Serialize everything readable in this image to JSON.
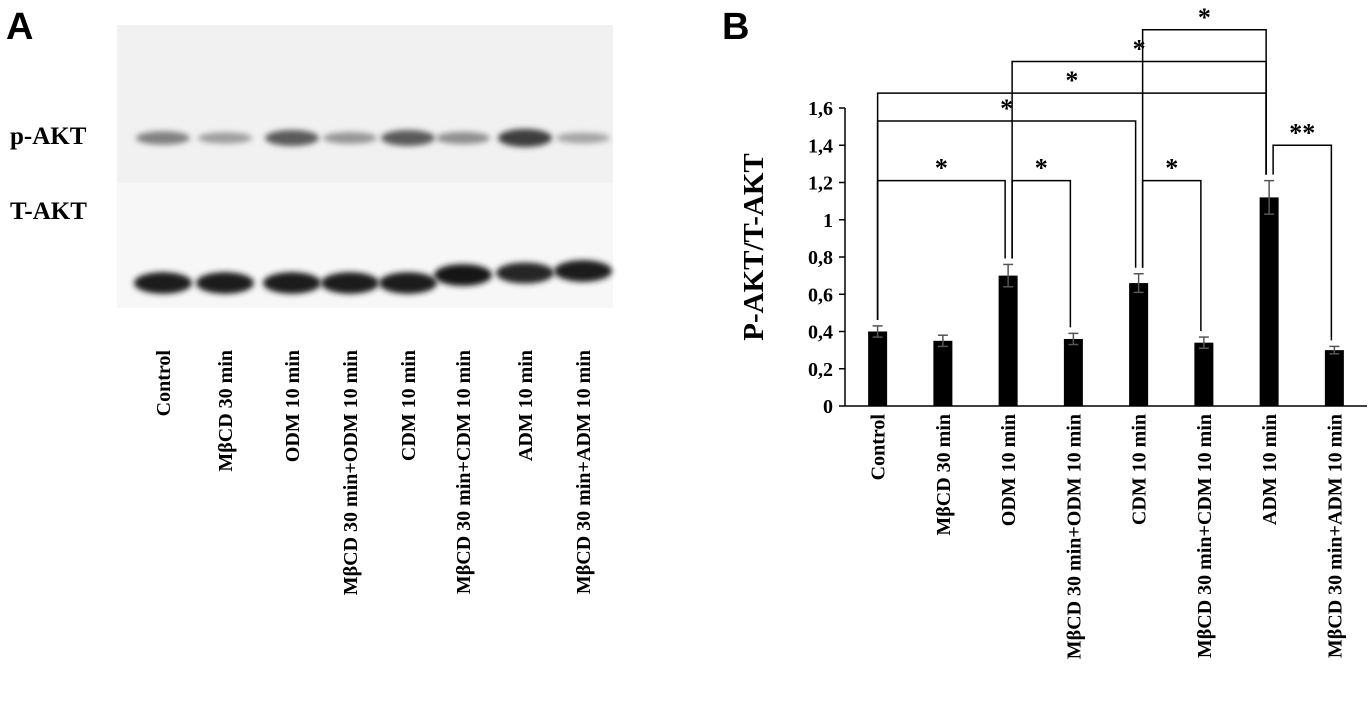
{
  "panel_a": {
    "letter": "A",
    "bands": [
      {
        "label": "p-AKT",
        "intensity": [
          0.55,
          0.35,
          0.8,
          0.4,
          0.8,
          0.45,
          1.0,
          0.3
        ]
      },
      {
        "label": "T-AKT",
        "intensity": [
          0.95,
          0.95,
          0.95,
          0.95,
          0.95,
          0.97,
          0.85,
          0.95
        ]
      }
    ],
    "lanes": [
      "Control",
      "MβCD 30 min",
      "ODM 10 min",
      "MβCD 30 min+ODM 10 min",
      "CDM 10 min",
      "MβCD 30 min+CDM 10 min",
      "ADM 10 min",
      "MβCD 30 min+ADM 10 min"
    ]
  },
  "panel_b": {
    "letter": "B"
  },
  "chart_data": {
    "type": "bar",
    "ylabel": "P-AKT/T-AKT",
    "categories": [
      "Control",
      "MβCD 30 min",
      "ODM 10 min",
      "MβCD 30 min+ODM 10 min",
      "CDM 10 min",
      "MβCD 30 min+CDM 10 min",
      "ADM 10 min",
      "MβCD 30 min+ADM 10 min"
    ],
    "values": [
      0.4,
      0.35,
      0.7,
      0.36,
      0.66,
      0.34,
      1.12,
      0.3
    ],
    "errors": [
      0.03,
      0.03,
      0.06,
      0.03,
      0.05,
      0.03,
      0.09,
      0.02
    ],
    "ylim": [
      0,
      1.6
    ],
    "yticks": [
      {
        "v": 0,
        "label": "0"
      },
      {
        "v": 0.2,
        "label": "0,2"
      },
      {
        "v": 0.4,
        "label": "0,4"
      },
      {
        "v": 0.6,
        "label": "0,6"
      },
      {
        "v": 0.8,
        "label": "0,8"
      },
      {
        "v": 1.0,
        "label": "1"
      },
      {
        "v": 1.2,
        "label": "1,2"
      },
      {
        "v": 1.4,
        "label": "1,4"
      },
      {
        "v": 1.6,
        "label": "1,6"
      }
    ],
    "bar_color": "#000000",
    "significance": [
      {
        "from": 0,
        "to": 2,
        "y": 1.21,
        "label": "*"
      },
      {
        "from": 2,
        "to": 3,
        "y": 1.21,
        "label": "*"
      },
      {
        "from": 4,
        "to": 5,
        "y": 1.21,
        "label": "*"
      },
      {
        "from": 6,
        "to": 7,
        "y": 1.4,
        "label": "**"
      },
      {
        "from": 0,
        "to": 4,
        "y": 1.53,
        "label": "*"
      },
      {
        "from": 0,
        "to": 6,
        "y": 1.68,
        "label": "*"
      },
      {
        "from": 2,
        "to": 6,
        "y": 1.85,
        "label": "*"
      },
      {
        "from": 4,
        "to": 6,
        "y": 2.02,
        "label": "*"
      }
    ]
  }
}
